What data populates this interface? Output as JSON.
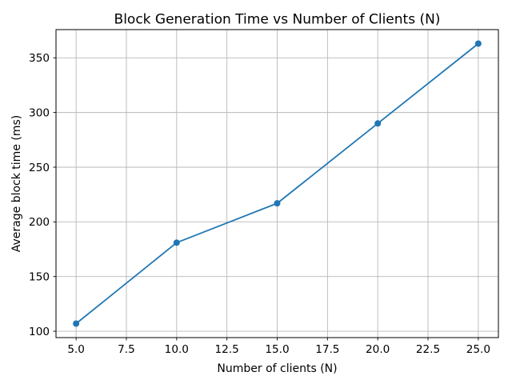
{
  "chart_data": {
    "type": "line",
    "title": "Block Generation Time vs Number of Clients (N)",
    "xlabel": "Number of clients (N)",
    "ylabel": "Average block time (ms)",
    "x": [
      5,
      10,
      15,
      20,
      25
    ],
    "y": [
      107,
      181,
      217,
      290,
      363
    ],
    "xlim": [
      4,
      26
    ],
    "ylim": [
      94.2,
      375.8
    ],
    "xtick_values": [
      5,
      7.5,
      10,
      12.5,
      15,
      17.5,
      20,
      22.5,
      25
    ],
    "xtick_labels": [
      "5.0",
      "7.5",
      "10.0",
      "12.5",
      "15.0",
      "17.5",
      "20.0",
      "22.5",
      "25.0"
    ],
    "ytick_values": [
      100,
      150,
      200,
      250,
      300,
      350
    ],
    "ytick_labels": [
      "100",
      "150",
      "200",
      "250",
      "300",
      "350"
    ],
    "grid": true,
    "legend": "none",
    "line_color": "#1f77b4",
    "marker": "o",
    "marker_color": "#1f77b4",
    "grid_color": "#b8b8b8",
    "axis_color": "#000000"
  }
}
